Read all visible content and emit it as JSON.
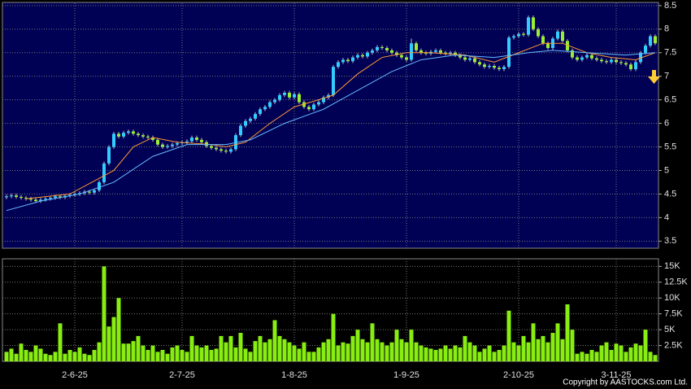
{
  "chart_data": [
    {
      "type": "candlestick",
      "grid": true,
      "up_color": "#33ccff",
      "down_color": "#99ee33",
      "ylim": [
        3.35,
        8.55
      ],
      "yticks": [
        3.5,
        4,
        4.5,
        5,
        5.5,
        6,
        6.5,
        7,
        7.5,
        8,
        8.5
      ],
      "open": [
        4.43,
        4.45,
        4.47,
        4.44,
        4.42,
        4.4,
        4.38,
        4.35,
        4.38,
        4.4,
        4.42,
        4.45,
        4.43,
        4.46,
        4.48,
        4.5,
        4.52,
        4.55,
        4.53,
        4.58,
        4.75,
        5.15,
        5.5,
        5.78,
        5.72,
        5.8,
        5.83,
        5.78,
        5.75,
        5.72,
        5.7,
        5.65,
        5.55,
        5.5,
        5.52,
        5.55,
        5.58,
        5.6,
        5.62,
        5.7,
        5.65,
        5.6,
        5.52,
        5.48,
        5.45,
        5.42,
        5.4,
        5.45,
        5.75,
        5.95,
        6.05,
        6.1,
        6.2,
        6.3,
        6.35,
        6.45,
        6.5,
        6.6,
        6.65,
        6.55,
        6.62,
        6.45,
        6.35,
        6.3,
        6.4,
        6.45,
        6.55,
        6.6,
        7.2,
        7.3,
        7.35,
        7.32,
        7.4,
        7.45,
        7.42,
        7.5,
        7.55,
        7.62,
        7.6,
        7.55,
        7.5,
        7.45,
        7.4,
        7.35,
        7.7,
        7.55,
        7.5,
        7.48,
        7.52,
        7.55,
        7.5,
        7.48,
        7.5,
        7.45,
        7.4,
        7.35,
        7.38,
        7.3,
        7.25,
        7.2,
        7.22,
        7.18,
        7.15,
        7.2,
        7.82,
        7.85,
        7.9,
        7.88,
        8.25,
        8.0,
        7.85,
        7.7,
        7.6,
        7.8,
        7.95,
        7.75,
        7.55,
        7.4,
        7.35,
        7.4,
        7.45,
        7.38,
        7.35,
        7.32,
        7.3,
        7.35,
        7.3,
        7.28,
        7.25,
        7.15,
        7.3,
        7.5,
        7.65,
        7.85
      ],
      "high": [
        4.49,
        4.51,
        4.51,
        4.48,
        4.46,
        4.44,
        4.42,
        4.42,
        4.44,
        4.46,
        4.49,
        4.49,
        4.5,
        4.52,
        4.54,
        4.56,
        4.59,
        4.59,
        4.62,
        4.79,
        5.19,
        5.54,
        5.82,
        5.82,
        5.84,
        5.87,
        5.87,
        5.82,
        5.79,
        5.76,
        5.74,
        5.69,
        5.59,
        5.56,
        5.59,
        5.62,
        5.64,
        5.66,
        5.74,
        5.74,
        5.69,
        5.64,
        5.56,
        5.52,
        5.49,
        5.46,
        5.49,
        5.79,
        5.99,
        6.09,
        6.14,
        6.24,
        6.34,
        6.39,
        6.49,
        6.54,
        6.64,
        6.69,
        6.69,
        6.66,
        6.66,
        6.49,
        6.39,
        6.44,
        6.49,
        6.59,
        6.64,
        7.24,
        7.34,
        7.39,
        7.39,
        7.44,
        7.49,
        7.49,
        7.54,
        7.59,
        7.66,
        7.66,
        7.64,
        7.59,
        7.54,
        7.49,
        7.44,
        7.8,
        7.74,
        7.59,
        7.54,
        7.56,
        7.59,
        7.59,
        7.54,
        7.54,
        7.54,
        7.49,
        7.44,
        7.42,
        7.42,
        7.34,
        7.29,
        7.26,
        7.26,
        7.22,
        7.24,
        7.86,
        7.89,
        7.94,
        7.94,
        8.29,
        8.29,
        8.04,
        7.89,
        7.74,
        7.84,
        7.99,
        7.99,
        7.79,
        7.59,
        7.44,
        7.44,
        7.49,
        7.49,
        7.42,
        7.39,
        7.36,
        7.39,
        7.39,
        7.34,
        7.32,
        7.29,
        7.34,
        7.54,
        7.69,
        7.89,
        7.89
      ],
      "low": [
        4.39,
        4.41,
        4.4,
        4.38,
        4.36,
        4.34,
        4.31,
        4.31,
        4.34,
        4.36,
        4.38,
        4.39,
        4.39,
        4.42,
        4.44,
        4.46,
        4.48,
        4.49,
        4.49,
        4.54,
        4.71,
        5.11,
        5.46,
        5.68,
        5.68,
        5.76,
        5.74,
        5.71,
        5.68,
        5.66,
        5.61,
        5.51,
        5.46,
        5.46,
        5.48,
        5.51,
        5.54,
        5.56,
        5.58,
        5.61,
        5.56,
        5.48,
        5.44,
        5.41,
        5.38,
        5.36,
        5.36,
        5.41,
        5.71,
        5.91,
        6.01,
        6.06,
        6.16,
        6.26,
        6.31,
        6.41,
        6.46,
        6.56,
        6.51,
        6.51,
        6.41,
        6.31,
        6.26,
        6.26,
        6.36,
        6.41,
        6.51,
        6.56,
        7.16,
        7.26,
        7.28,
        7.28,
        7.36,
        7.38,
        7.38,
        7.46,
        7.51,
        7.56,
        7.51,
        7.46,
        7.41,
        7.36,
        7.31,
        7.31,
        7.51,
        7.46,
        7.44,
        7.44,
        7.48,
        7.46,
        7.44,
        7.44,
        7.41,
        7.36,
        7.31,
        7.31,
        7.26,
        7.21,
        7.16,
        7.16,
        7.14,
        7.11,
        7.11,
        7.16,
        7.78,
        7.81,
        7.84,
        7.84,
        7.96,
        7.81,
        7.66,
        7.56,
        7.56,
        7.76,
        7.71,
        7.51,
        7.36,
        7.31,
        7.31,
        7.36,
        7.34,
        7.31,
        7.28,
        7.26,
        7.26,
        7.26,
        7.24,
        7.21,
        7.11,
        7.11,
        7.26,
        7.46,
        7.61,
        7.66
      ],
      "close": [
        4.45,
        4.47,
        4.44,
        4.42,
        4.4,
        4.38,
        4.35,
        4.38,
        4.4,
        4.42,
        4.45,
        4.43,
        4.46,
        4.48,
        4.5,
        4.52,
        4.55,
        4.53,
        4.58,
        4.75,
        5.15,
        5.5,
        5.78,
        5.72,
        5.8,
        5.83,
        5.78,
        5.75,
        5.72,
        5.7,
        5.65,
        5.55,
        5.5,
        5.52,
        5.55,
        5.58,
        5.6,
        5.62,
        5.7,
        5.65,
        5.6,
        5.52,
        5.48,
        5.45,
        5.42,
        5.4,
        5.45,
        5.75,
        5.95,
        6.05,
        6.1,
        6.2,
        6.3,
        6.35,
        6.45,
        6.5,
        6.6,
        6.65,
        6.55,
        6.62,
        6.45,
        6.35,
        6.3,
        6.4,
        6.45,
        6.55,
        6.6,
        7.2,
        7.3,
        7.35,
        7.32,
        7.4,
        7.45,
        7.42,
        7.5,
        7.55,
        7.62,
        7.6,
        7.55,
        7.5,
        7.45,
        7.4,
        7.35,
        7.7,
        7.55,
        7.5,
        7.48,
        7.52,
        7.55,
        7.5,
        7.48,
        7.5,
        7.45,
        7.4,
        7.35,
        7.38,
        7.3,
        7.25,
        7.2,
        7.22,
        7.18,
        7.15,
        7.2,
        7.82,
        7.85,
        7.9,
        7.88,
        8.25,
        8.0,
        7.85,
        7.7,
        7.6,
        7.8,
        7.95,
        7.75,
        7.55,
        7.4,
        7.35,
        7.4,
        7.45,
        7.38,
        7.35,
        7.32,
        7.3,
        7.35,
        7.3,
        7.28,
        7.25,
        7.15,
        7.3,
        7.5,
        7.65,
        7.85,
        7.7
      ],
      "overlays": [
        {
          "color": "#ff9933",
          "x": [
            4,
            13,
            22,
            26,
            30,
            35,
            42,
            45,
            49,
            54,
            59,
            64,
            67,
            72,
            77,
            82,
            87,
            94,
            100,
            105,
            110,
            114,
            119,
            124,
            129,
            133
          ],
          "values": [
            4.4,
            4.5,
            5.0,
            5.5,
            5.7,
            5.6,
            5.55,
            5.5,
            5.6,
            6.0,
            6.35,
            6.5,
            6.6,
            7.05,
            7.4,
            7.5,
            7.5,
            7.45,
            7.3,
            7.5,
            7.7,
            7.7,
            7.5,
            7.4,
            7.35,
            7.5
          ]
        },
        {
          "color": "#66bbff",
          "x": [
            0,
            7,
            15,
            22,
            30,
            37,
            45,
            50,
            57,
            65,
            72,
            79,
            85,
            92,
            100,
            107,
            112,
            119,
            127,
            133
          ],
          "values": [
            4.15,
            4.35,
            4.5,
            4.75,
            5.3,
            5.55,
            5.55,
            5.65,
            6.0,
            6.3,
            6.7,
            7.1,
            7.35,
            7.45,
            7.4,
            7.5,
            7.55,
            7.5,
            7.45,
            7.5
          ]
        }
      ]
    },
    {
      "type": "bar",
      "color": "#88ee11",
      "grid": true,
      "categories": [
        null,
        null,
        null,
        null,
        null,
        null,
        null,
        null,
        null,
        null,
        null,
        null,
        null,
        null,
        "2-6-25",
        null,
        null,
        null,
        null,
        null,
        null,
        null,
        null,
        null,
        null,
        null,
        null,
        null,
        null,
        null,
        null,
        null,
        null,
        null,
        null,
        null,
        "2-7-25",
        null,
        null,
        null,
        null,
        null,
        null,
        null,
        null,
        null,
        null,
        null,
        null,
        null,
        null,
        null,
        null,
        null,
        null,
        null,
        null,
        null,
        null,
        "1-8-25",
        null,
        null,
        null,
        null,
        null,
        null,
        null,
        null,
        null,
        null,
        null,
        null,
        null,
        null,
        null,
        null,
        null,
        null,
        null,
        null,
        null,
        null,
        "1-9-25",
        null,
        null,
        null,
        null,
        null,
        null,
        null,
        null,
        null,
        null,
        null,
        null,
        null,
        null,
        null,
        null,
        null,
        null,
        null,
        null,
        null,
        null,
        "2-10-25",
        null,
        null,
        null,
        null,
        null,
        null,
        null,
        null,
        null,
        null,
        null,
        null,
        null,
        null,
        null,
        null,
        null,
        null,
        null,
        "3-11-25",
        null,
        null,
        null,
        null,
        null,
        null,
        null,
        null
      ],
      "values": [
        1500,
        2000,
        1200,
        2800,
        1800,
        1500,
        2500,
        2000,
        1200,
        1000,
        1500,
        6000,
        1200,
        1800,
        1500,
        2200,
        1200,
        1000,
        1800,
        3000,
        15000,
        5500,
        7000,
        10000,
        2800,
        2800,
        3200,
        4000,
        2500,
        1800,
        2500,
        1500,
        1800,
        1200,
        2200,
        2500,
        1800,
        1500,
        4000,
        2500,
        2200,
        2500,
        1800,
        2000,
        4000,
        3000,
        4000,
        2200,
        4500,
        2000,
        1500,
        3200,
        4000,
        3000,
        3500,
        6500,
        4000,
        3500,
        3000,
        2500,
        2000,
        3000,
        1500,
        1500,
        2200,
        3000,
        3500,
        7500,
        2500,
        3000,
        2800,
        4000,
        5000,
        3500,
        3000,
        6000,
        3500,
        3000,
        2500,
        3000,
        5000,
        3500,
        3000,
        5000,
        3000,
        2500,
        2200,
        2000,
        1800,
        2000,
        2500,
        2000,
        2500,
        2200,
        4000,
        3000,
        2500,
        1500,
        2000,
        2500,
        1500,
        1800,
        2500,
        8000,
        3000,
        2500,
        4000,
        3000,
        6000,
        3500,
        4000,
        3000,
        4500,
        6000,
        3500,
        9000,
        5000,
        1200,
        1500,
        1200,
        1800,
        1500,
        2500,
        3000,
        1800,
        2800,
        2500,
        1500,
        2200,
        2800,
        2500,
        5000,
        1500,
        1000
      ],
      "ylim": [
        0,
        16200
      ],
      "yticks": [
        {
          "value": 2500,
          "label": "2.5K"
        },
        {
          "value": 5000,
          "label": "5K"
        },
        {
          "value": 7500,
          "label": "7.5K"
        },
        {
          "value": 10000,
          "label": "10K"
        },
        {
          "value": 12500,
          "label": "12.5K"
        },
        {
          "value": 15000,
          "label": "15K"
        }
      ]
    }
  ],
  "footer": "Copyright by AASTOCKS.com Ltd."
}
